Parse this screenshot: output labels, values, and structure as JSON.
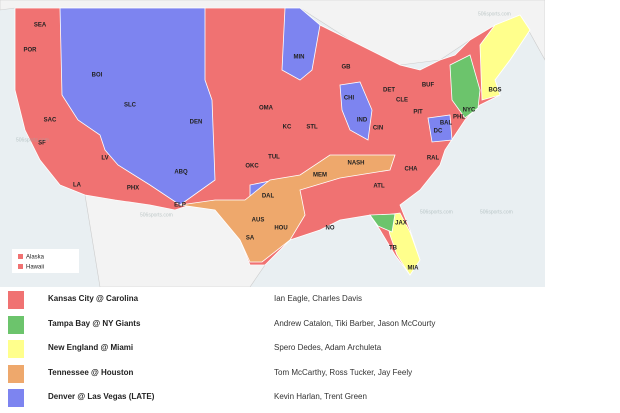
{
  "map": {
    "watermark": "506sports.com",
    "inset_legend": [
      "Alaska",
      "Hawaii"
    ],
    "cities": [
      "SEA",
      "POR",
      "BOI",
      "SLC",
      "DEN",
      "PHX",
      "LV",
      "LA",
      "SF",
      "SAC",
      "ABQ",
      "DAL",
      "HOU",
      "SA",
      "NO",
      "KC",
      "MIN",
      "CHI",
      "DET",
      "IND",
      "CIN",
      "CLE",
      "PIT",
      "NASH",
      "ATL",
      "CHA",
      "JAX",
      "TB",
      "MIA",
      "DC",
      "BAL",
      "PHL",
      "NYC",
      "BOS",
      "BUF",
      "RAL",
      "MEM",
      "STL",
      "GB",
      "OKC",
      "TUL",
      "OMA",
      "ELP",
      "AUS"
    ]
  },
  "legend": {
    "rows": [
      {
        "color": "#f07272",
        "game": "Kansas City @ Carolina",
        "announcers": "Ian Eagle, Charles Davis"
      },
      {
        "color": "#6cc46c",
        "game": "Tampa Bay @ NY Giants",
        "announcers": "Andrew Catalon, Tiki Barber, Jason McCourty"
      },
      {
        "color": "#ffff8c",
        "game": "New England @ Miami",
        "announcers": "Spero Dedes, Adam Archuleta"
      },
      {
        "color": "#eea86c",
        "game": "Tennessee @ Houston",
        "announcers": "Tom McCarthy, Ross Tucker, Jay Feely"
      },
      {
        "color": "#7d84f0",
        "game": "Denver @ Las Vegas (LATE)",
        "announcers": "Kevin Harlan, Trent Green"
      }
    ]
  }
}
